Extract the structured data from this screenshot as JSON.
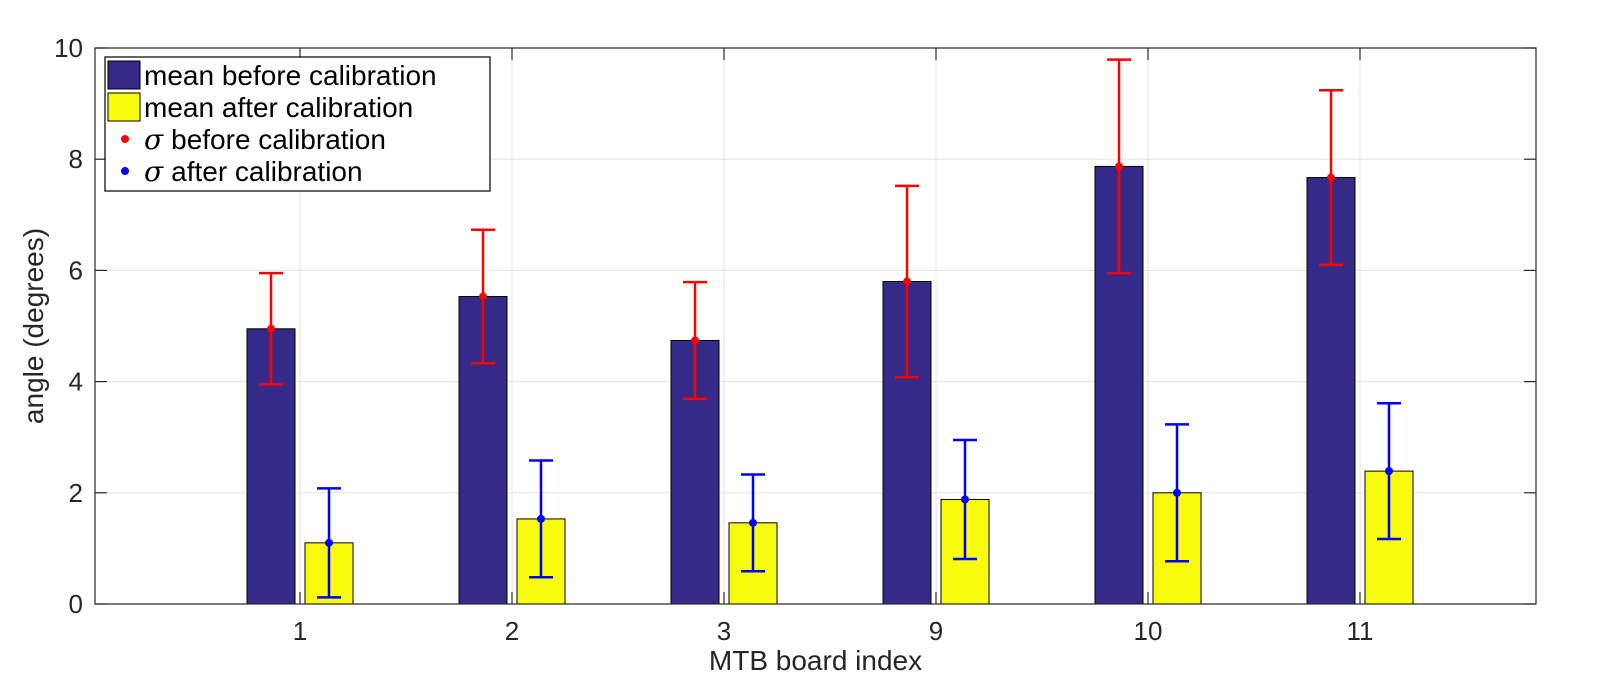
{
  "chart_data": {
    "type": "bar",
    "title": "",
    "xlabel": "MTB board index",
    "ylabel": "angle (degrees)",
    "ylim": [
      0,
      10
    ],
    "yticks": [
      0,
      2,
      4,
      6,
      8,
      10
    ],
    "grid": true,
    "legend_position": "top-left",
    "categories": [
      "1",
      "2",
      "3",
      "9",
      "10",
      "11"
    ],
    "series": [
      {
        "name": "mean before calibration",
        "color": "#352a87",
        "values": [
          4.95,
          5.53,
          4.74,
          5.8,
          7.87,
          7.67
        ],
        "error": [
          1.0,
          1.2,
          1.05,
          1.72,
          1.92,
          1.57
        ],
        "error_name": "before calibration",
        "error_color": "#ff0000"
      },
      {
        "name": "mean after calibration",
        "color": "#f9fb0e",
        "values": [
          1.1,
          1.53,
          1.46,
          1.88,
          2.0,
          2.39
        ],
        "error": [
          0.98,
          1.05,
          0.87,
          1.07,
          1.23,
          1.22
        ],
        "error_name": "after calibration",
        "error_color": "#0000ff"
      }
    ],
    "sigma_symbol": "σ"
  }
}
